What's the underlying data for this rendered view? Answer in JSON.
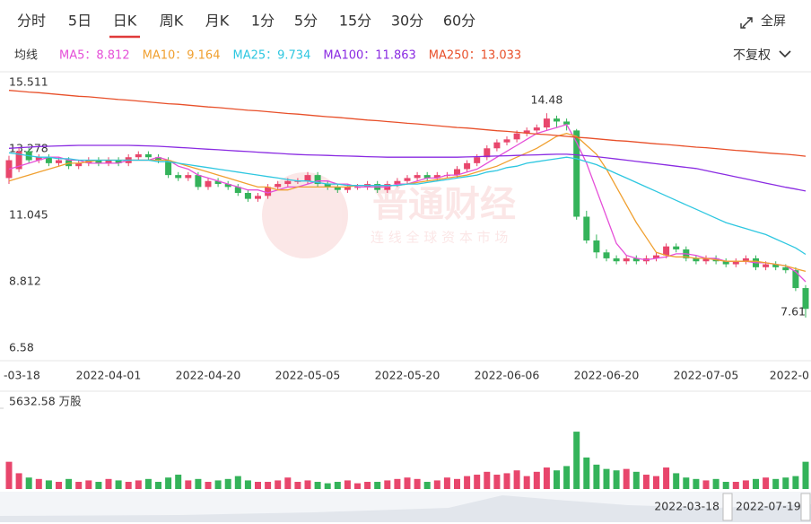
{
  "toolbar": {
    "tabs": [
      "分时",
      "5日",
      "日K",
      "周K",
      "月K",
      "1分",
      "5分",
      "15分",
      "30分",
      "60分"
    ],
    "active_tab": 2,
    "fullscreen": "全屏",
    "ma_label": "均线",
    "adjust": "不复权"
  },
  "watermark": {
    "brand": "普通财经",
    "slogan": "连 线 全 球 资 本 市 场"
  },
  "navigator": {
    "start": "2022-03-18",
    "end": "2022-07-19"
  },
  "chart_data": {
    "type": "candlestick",
    "categories": [
      "-03-18",
      null,
      null,
      null,
      null,
      null,
      null,
      null,
      null,
      null,
      "2022-04-01",
      null,
      null,
      null,
      null,
      null,
      null,
      null,
      null,
      null,
      "2022-04-20",
      null,
      null,
      null,
      null,
      null,
      null,
      null,
      null,
      null,
      "2022-05-05",
      null,
      null,
      null,
      null,
      null,
      null,
      null,
      null,
      null,
      "2022-05-20",
      null,
      null,
      null,
      null,
      null,
      null,
      null,
      null,
      null,
      "2022-06-06",
      null,
      null,
      null,
      null,
      null,
      null,
      null,
      null,
      null,
      "2022-06-20",
      null,
      null,
      null,
      null,
      null,
      null,
      null,
      null,
      null,
      "2022-07-05",
      null,
      null,
      null,
      null,
      null,
      null,
      null,
      null,
      null,
      "2022-0"
    ],
    "open": [
      12.3,
      12.6,
      13.2,
      12.9,
      13.0,
      12.8,
      12.9,
      12.7,
      12.8,
      12.9,
      12.8,
      12.9,
      12.8,
      13.0,
      13.1,
      13.0,
      12.9,
      12.4,
      12.3,
      12.4,
      12.0,
      12.2,
      12.1,
      12.0,
      11.8,
      11.6,
      11.7,
      12.0,
      12.1,
      12.2,
      12.2,
      12.4,
      12.1,
      12.0,
      11.9,
      12.0,
      12.0,
      12.1,
      11.9,
      12.1,
      12.2,
      12.3,
      12.4,
      12.3,
      12.4,
      12.4,
      12.6,
      12.8,
      13.0,
      13.3,
      13.5,
      13.6,
      13.8,
      13.9,
      14.0,
      14.3,
      14.2,
      13.9,
      11.0,
      10.2,
      9.8,
      9.6,
      9.5,
      9.6,
      9.5,
      9.6,
      9.7,
      10.0,
      9.9,
      9.6,
      9.5,
      9.6,
      9.5,
      9.4,
      9.5,
      9.6,
      9.3,
      9.4,
      9.3,
      9.2,
      8.6
    ],
    "high": [
      13.05,
      13.35,
      13.35,
      13.1,
      13.1,
      13.0,
      13.0,
      12.9,
      13.0,
      13.0,
      13.0,
      13.0,
      13.1,
      13.2,
      13.2,
      13.1,
      13.0,
      12.5,
      12.5,
      12.5,
      12.3,
      12.3,
      12.2,
      12.1,
      11.9,
      11.8,
      12.1,
      12.2,
      12.3,
      12.3,
      12.5,
      12.5,
      12.2,
      12.1,
      12.1,
      12.1,
      12.2,
      12.2,
      12.2,
      12.3,
      12.4,
      12.5,
      12.5,
      12.5,
      12.5,
      12.7,
      12.9,
      13.1,
      13.4,
      13.6,
      13.7,
      13.9,
      14.0,
      14.1,
      14.48,
      14.4,
      14.3,
      13.95,
      11.2,
      10.4,
      9.9,
      9.7,
      9.7,
      9.7,
      9.7,
      9.8,
      10.1,
      10.1,
      10.0,
      9.7,
      9.7,
      9.7,
      9.6,
      9.6,
      9.7,
      9.7,
      9.5,
      9.5,
      9.4,
      9.3,
      8.7
    ],
    "low": [
      12.1,
      12.5,
      12.8,
      12.8,
      12.7,
      12.7,
      12.6,
      12.6,
      12.7,
      12.7,
      12.7,
      12.7,
      12.7,
      12.9,
      12.9,
      12.8,
      12.3,
      12.2,
      12.2,
      11.9,
      11.9,
      12.0,
      11.9,
      11.7,
      11.5,
      11.5,
      11.6,
      11.9,
      12.0,
      12.1,
      12.1,
      12.0,
      11.9,
      11.8,
      11.8,
      11.9,
      11.9,
      11.8,
      11.8,
      12.0,
      12.1,
      12.2,
      12.2,
      12.2,
      12.3,
      12.3,
      12.5,
      12.7,
      12.9,
      13.2,
      13.4,
      13.5,
      13.7,
      13.8,
      13.9,
      14.0,
      13.9,
      10.9,
      10.1,
      9.6,
      9.5,
      9.4,
      9.4,
      9.4,
      9.4,
      9.5,
      9.6,
      9.8,
      9.5,
      9.4,
      9.4,
      9.4,
      9.3,
      9.3,
      9.4,
      9.2,
      9.2,
      9.2,
      9.1,
      8.5,
      7.61
    ],
    "close": [
      12.9,
      13.2,
      12.9,
      13.0,
      12.8,
      12.9,
      12.7,
      12.8,
      12.9,
      12.8,
      12.9,
      12.8,
      13.0,
      13.1,
      13.0,
      12.9,
      12.4,
      12.3,
      12.4,
      12.0,
      12.2,
      12.1,
      12.0,
      11.8,
      11.6,
      11.7,
      12.0,
      12.1,
      12.2,
      12.2,
      12.4,
      12.1,
      12.0,
      11.9,
      12.0,
      12.0,
      12.1,
      11.9,
      12.1,
      12.2,
      12.3,
      12.4,
      12.3,
      12.4,
      12.4,
      12.6,
      12.8,
      13.0,
      13.3,
      13.5,
      13.6,
      13.8,
      13.9,
      14.0,
      14.3,
      14.2,
      14.1,
      11.0,
      10.2,
      9.8,
      9.6,
      9.5,
      9.6,
      9.5,
      9.6,
      9.7,
      10.0,
      9.9,
      9.6,
      9.5,
      9.6,
      9.5,
      9.4,
      9.5,
      9.6,
      9.3,
      9.4,
      9.3,
      9.2,
      8.6,
      7.9
    ],
    "up_color": "#e8466c",
    "down_color": "#34b35a",
    "series": [
      {
        "name": "MA5：8.812",
        "color": "#e54fd8",
        "values": [
          12.6,
          12.7,
          12.8,
          12.9,
          13.0,
          13.0,
          12.9,
          12.9,
          12.8,
          12.8,
          12.8,
          12.8,
          12.9,
          12.9,
          12.9,
          13.0,
          12.9,
          12.7,
          12.6,
          12.4,
          12.3,
          12.2,
          12.1,
          12.0,
          11.9,
          11.9,
          11.8,
          11.9,
          12.0,
          12.0,
          12.1,
          12.2,
          12.2,
          12.1,
          12.1,
          12.0,
          12.0,
          12.0,
          12.0,
          12.1,
          12.1,
          12.2,
          12.3,
          12.3,
          12.4,
          12.4,
          12.5,
          12.6,
          12.8,
          13.0,
          13.2,
          13.4,
          13.6,
          13.8,
          13.9,
          14.0,
          14.1,
          13.5,
          12.8,
          11.9,
          11.0,
          10.1,
          9.7,
          9.6,
          9.55,
          9.6,
          9.65,
          9.75,
          9.75,
          9.7,
          9.6,
          9.6,
          9.5,
          9.5,
          9.5,
          9.45,
          9.45,
          9.4,
          9.35,
          9.15,
          8.812
        ]
      },
      {
        "name": "MA10：9.164",
        "color": "#f0a030",
        "values": [
          12.2,
          12.3,
          12.4,
          12.5,
          12.6,
          12.7,
          12.8,
          12.8,
          12.85,
          12.9,
          12.9,
          12.9,
          12.9,
          12.9,
          12.9,
          12.9,
          12.9,
          12.8,
          12.7,
          12.6,
          12.5,
          12.4,
          12.3,
          12.2,
          12.1,
          12.0,
          12.0,
          11.9,
          11.9,
          12.0,
          12.0,
          12.0,
          12.0,
          12.0,
          12.0,
          12.05,
          12.05,
          12.05,
          12.05,
          12.05,
          12.1,
          12.15,
          12.2,
          12.25,
          12.3,
          12.35,
          12.4,
          12.5,
          12.6,
          12.7,
          12.85,
          13.0,
          13.15,
          13.3,
          13.5,
          13.7,
          13.8,
          13.7,
          13.4,
          13.1,
          12.6,
          12.0,
          11.4,
          10.8,
          10.3,
          9.8,
          9.7,
          9.65,
          9.65,
          9.6,
          9.6,
          9.55,
          9.5,
          9.5,
          9.5,
          9.5,
          9.45,
          9.4,
          9.35,
          9.25,
          9.164
        ]
      },
      {
        "name": "MA25：9.734",
        "color": "#2ec7e0",
        "values": [
          13.15,
          13.1,
          13.05,
          13.0,
          13.0,
          12.95,
          12.95,
          12.9,
          12.9,
          12.9,
          12.9,
          12.9,
          12.9,
          12.9,
          12.9,
          12.85,
          12.85,
          12.8,
          12.75,
          12.7,
          12.65,
          12.6,
          12.55,
          12.5,
          12.45,
          12.4,
          12.35,
          12.3,
          12.25,
          12.2,
          12.2,
          12.15,
          12.1,
          12.1,
          12.05,
          12.05,
          12.05,
          12.05,
          12.05,
          12.05,
          12.1,
          12.1,
          12.15,
          12.2,
          12.25,
          12.3,
          12.35,
          12.4,
          12.5,
          12.55,
          12.65,
          12.7,
          12.8,
          12.85,
          12.9,
          12.95,
          13.0,
          12.95,
          12.85,
          12.75,
          12.6,
          12.45,
          12.3,
          12.15,
          12.0,
          11.85,
          11.7,
          11.55,
          11.4,
          11.25,
          11.1,
          10.95,
          10.8,
          10.7,
          10.6,
          10.5,
          10.4,
          10.25,
          10.1,
          9.95,
          9.734
        ]
      },
      {
        "name": "MA100：11.863",
        "color": "#8a2be2",
        "values": [
          13.3,
          13.32,
          13.34,
          13.36,
          13.37,
          13.38,
          13.39,
          13.4,
          13.4,
          13.4,
          13.4,
          13.4,
          13.4,
          13.39,
          13.38,
          13.37,
          13.35,
          13.33,
          13.31,
          13.29,
          13.27,
          13.25,
          13.23,
          13.21,
          13.19,
          13.17,
          13.15,
          13.13,
          13.11,
          13.09,
          13.08,
          13.07,
          13.06,
          13.05,
          13.04,
          13.03,
          13.02,
          13.01,
          13.0,
          13.0,
          13.0,
          13.0,
          13.0,
          13.0,
          13.0,
          13.0,
          13.01,
          13.02,
          13.03,
          13.04,
          13.05,
          13.06,
          13.07,
          13.08,
          13.09,
          13.1,
          13.1,
          13.08,
          13.05,
          13.02,
          12.98,
          12.94,
          12.9,
          12.86,
          12.82,
          12.78,
          12.74,
          12.7,
          12.66,
          12.62,
          12.55,
          12.48,
          12.41,
          12.34,
          12.27,
          12.2,
          12.13,
          12.06,
          11.99,
          11.93,
          11.863
        ]
      },
      {
        "name": "MA250：13.033",
        "color": "#e8502a",
        "values": [
          15.25,
          15.22,
          15.19,
          15.17,
          15.14,
          15.11,
          15.08,
          15.05,
          15.03,
          15.0,
          14.97,
          14.94,
          14.92,
          14.89,
          14.86,
          14.83,
          14.8,
          14.78,
          14.75,
          14.72,
          14.69,
          14.67,
          14.64,
          14.61,
          14.58,
          14.56,
          14.53,
          14.5,
          14.47,
          14.45,
          14.42,
          14.39,
          14.36,
          14.34,
          14.31,
          14.28,
          14.25,
          14.23,
          14.2,
          14.17,
          14.14,
          14.12,
          14.09,
          14.06,
          14.03,
          14.0,
          13.98,
          13.95,
          13.92,
          13.89,
          13.87,
          13.84,
          13.81,
          13.78,
          13.76,
          13.73,
          13.7,
          13.67,
          13.65,
          13.62,
          13.59,
          13.56,
          13.54,
          13.51,
          13.48,
          13.45,
          13.43,
          13.4,
          13.37,
          13.34,
          13.32,
          13.29,
          13.26,
          13.23,
          13.21,
          13.18,
          13.15,
          13.12,
          13.1,
          13.07,
          13.033
        ]
      }
    ],
    "ylim": [
      6.58,
      15.511
    ],
    "yticks": [
      15.511,
      13.278,
      11.045,
      8.812,
      6.58
    ],
    "grid": false,
    "volume": [
      1900,
      1100,
      800,
      700,
      600,
      500,
      700,
      500,
      600,
      500,
      700,
      600,
      500,
      600,
      700,
      500,
      800,
      1000,
      600,
      700,
      500,
      600,
      700,
      900,
      600,
      500,
      500,
      600,
      800,
      500,
      600,
      500,
      400,
      500,
      600,
      400,
      500,
      500,
      600,
      700,
      800,
      700,
      500,
      600,
      800,
      700,
      900,
      1000,
      1200,
      1000,
      1100,
      1300,
      900,
      1200,
      1500,
      1300,
      1600,
      4000,
      2200,
      1700,
      1400,
      1300,
      1400,
      1200,
      1000,
      900,
      1500,
      1100,
      800,
      700,
      600,
      700,
      500,
      500,
      600,
      700,
      800,
      700,
      800,
      900,
      1900
    ],
    "volume_ylim": [
      0,
      5632.58
    ],
    "volume_yticks": [
      {
        "value": 5632.58,
        "label": "5632.58 万股"
      }
    ]
  }
}
